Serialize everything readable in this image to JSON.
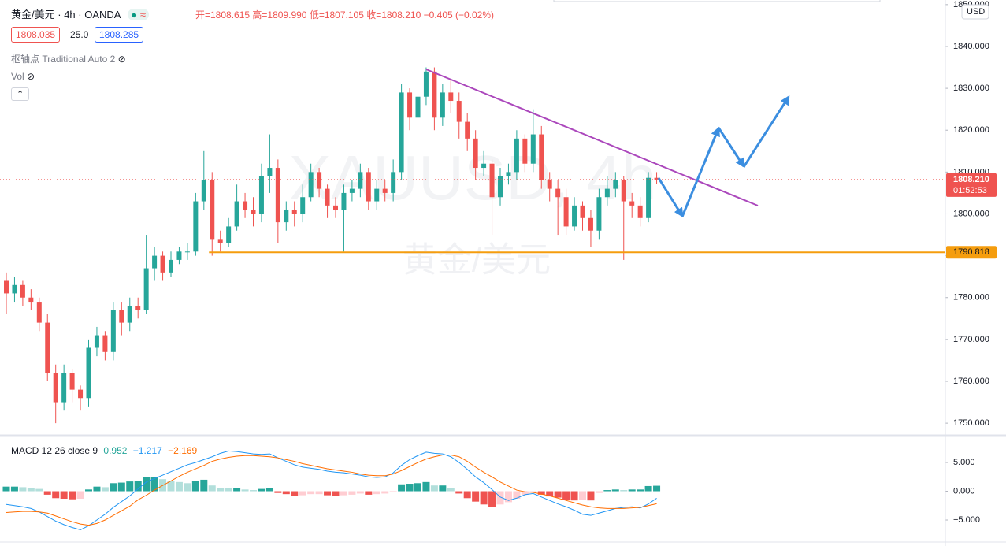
{
  "header": {
    "symbol": "黄金/美元",
    "interval": "4h",
    "source": "OANDA",
    "open": "开=1808.615",
    "high": "高=1809.990",
    "low": "低=1807.105",
    "close": "收=1808.210",
    "change": "−0.405 (−0.02%)",
    "sell": "1808.035",
    "spread": "25.0",
    "buy": "1808.285",
    "pivots": "枢轴点 Traditional Auto 2",
    "vol": "Vol",
    "currency": "USD"
  },
  "chart_data": [
    {
      "type": "candlestick",
      "watermark": [
        "XAUUSD, 4h",
        "黄金/美元"
      ],
      "up_color": "#26a69a",
      "down_color": "#ef5350",
      "open": [
        1784,
        1781,
        1783,
        1780,
        1779,
        1774,
        1762,
        1755,
        1762,
        1758,
        1756,
        1768,
        1771,
        1767,
        1777,
        1774,
        1778,
        1777,
        1787,
        1790,
        1786,
        1789,
        1791,
        1791,
        1803,
        1808,
        1794,
        1793,
        1797,
        1803,
        1801,
        1800,
        1809,
        1811,
        1798,
        1801,
        1800,
        1804,
        1810,
        1806,
        1802,
        1801,
        1805,
        1806,
        1810,
        1803,
        1806,
        1805,
        1810,
        1829,
        1823,
        1828,
        1834,
        1823,
        1829,
        1827,
        1822,
        1818,
        1811,
        1812,
        1804,
        1809,
        1810,
        1818,
        1812,
        1819,
        1808,
        1806,
        1804,
        1797,
        1802,
        1799,
        1796,
        1804,
        1806,
        1808,
        1803,
        1802,
        1799,
        1808.615
      ],
      "high": [
        1786,
        1785,
        1784,
        1782,
        1780,
        1776,
        1764,
        1764,
        1763,
        1759,
        1770,
        1773,
        1772,
        1779,
        1779,
        1780,
        1780,
        1795,
        1792,
        1791,
        1791,
        1792,
        1793,
        1805,
        1815,
        1810,
        1796,
        1799,
        1807,
        1805,
        1804,
        1812,
        1819,
        1813,
        1803,
        1803,
        1807,
        1812,
        1811,
        1807,
        1804,
        1807,
        1808,
        1812,
        1811,
        1808,
        1808,
        1813,
        1831,
        1830,
        1830,
        1835,
        1835,
        1831,
        1832,
        1829,
        1824,
        1820,
        1815,
        1813,
        1811,
        1812,
        1820,
        1819,
        1825,
        1821,
        1810,
        1808,
        1806,
        1804,
        1803,
        1801,
        1806,
        1809,
        1810,
        1809,
        1805,
        1804,
        1810,
        1809.99
      ],
      "low": [
        1776,
        1779,
        1778,
        1777,
        1772,
        1760,
        1750,
        1753,
        1755,
        1753,
        1754,
        1766,
        1765,
        1765,
        1771,
        1772,
        1775,
        1776,
        1784,
        1784,
        1785,
        1788,
        1789,
        1790,
        1801,
        1790,
        1791,
        1792,
        1796,
        1799,
        1797,
        1798,
        1805,
        1793,
        1796,
        1797,
        1798,
        1803,
        1804,
        1799,
        1799,
        1791,
        1803,
        1804,
        1801,
        1801,
        1803,
        1803,
        1808,
        1820,
        1821,
        1826,
        1820,
        1821,
        1824,
        1818,
        1815,
        1808,
        1809,
        1795,
        1802,
        1807,
        1808,
        1810,
        1810,
        1806,
        1803,
        1795,
        1795,
        1796,
        1796,
        1792,
        1794,
        1802,
        1804,
        1789,
        1799,
        1797,
        1798,
        1807.105
      ],
      "close": [
        1781,
        1783,
        1780,
        1779,
        1774,
        1762,
        1755,
        1762,
        1758,
        1756,
        1768,
        1771,
        1767,
        1777,
        1774,
        1778,
        1777,
        1787,
        1790,
        1786,
        1789,
        1791,
        1791,
        1803,
        1808,
        1794,
        1793,
        1797,
        1803,
        1801,
        1800,
        1809,
        1811,
        1798,
        1801,
        1800,
        1804,
        1810,
        1806,
        1802,
        1801,
        1805,
        1806,
        1810,
        1803,
        1806,
        1805,
        1810,
        1829,
        1823,
        1828,
        1834,
        1823,
        1829,
        1827,
        1822,
        1818,
        1811,
        1812,
        1804,
        1809,
        1810,
        1818,
        1812,
        1819,
        1808,
        1806,
        1804,
        1797,
        1802,
        1799,
        1796,
        1804,
        1806,
        1808,
        1803,
        1802,
        1799,
        1808.615,
        1808.21
      ],
      "ylim": [
        1747.2,
        1851.1
      ],
      "yticks": [
        {
          "value": 1750,
          "label": "1750.000"
        },
        {
          "value": 1760,
          "label": "1760.000"
        },
        {
          "value": 1770,
          "label": "1770.000"
        },
        {
          "value": 1780,
          "label": "1780.000"
        },
        {
          "value": 1790,
          "label": "1790.000"
        },
        {
          "value": 1800,
          "label": "1800.000"
        },
        {
          "value": 1810,
          "label": "1810.000"
        },
        {
          "value": 1820,
          "label": "1820.000"
        },
        {
          "value": 1830,
          "label": "1830.000"
        },
        {
          "value": 1840,
          "label": "1840.000"
        },
        {
          "value": 1850,
          "label": "1850.000"
        }
      ],
      "grid": false,
      "last_price": {
        "value": 1808.21,
        "label": "1808.210"
      },
      "countdown": "01:52:53",
      "level": 1790.818,
      "level_color": "#f59d0e",
      "last_color": "#ef5350"
    },
    {
      "type": "macd",
      "title": "MACD 12 26 close 9",
      "last_labels": [
        "0.952",
        "−1.217",
        "−2.169"
      ],
      "histogram": {
        "colors": [
          "#26a69a",
          "#b2dfdb",
          "#ffcdd2",
          "#ef5350"
        ],
        "values": [
          0.8,
          0.8,
          0.7,
          0.6,
          0.4,
          -0.6,
          -1.2,
          -1.3,
          -1.4,
          -1.3,
          0.3,
          0.8,
          0.7,
          1.4,
          1.5,
          1.7,
          1.8,
          2.4,
          2.5,
          2.1,
          1.8,
          1.6,
          1.4,
          1.8,
          2.0,
          1.0,
          0.6,
          0.5,
          0.5,
          0.3,
          0.2,
          0.4,
          0.5,
          -0.3,
          -0.5,
          -0.8,
          -0.7,
          -0.5,
          -0.5,
          -0.7,
          -0.8,
          -0.7,
          -0.6,
          -0.4,
          -0.6,
          -0.5,
          -0.4,
          -0.2,
          1.2,
          1.3,
          1.4,
          1.6,
          1.0,
          1.0,
          0.6,
          -0.4,
          -1.2,
          -1.8,
          -2.3,
          -2.8,
          -2.3,
          -1.9,
          -1.3,
          -0.6,
          -0.2,
          -0.6,
          -0.9,
          -1.1,
          -1.5,
          -1.6,
          -1.5,
          -1.6,
          -0.3,
          0.2,
          0.3,
          0.2,
          0.3,
          0.3,
          0.9,
          0.952
        ]
      },
      "series": [
        {
          "color": "#2196f3",
          "values": [
            -2.3,
            -2.5,
            -2.7,
            -3.0,
            -3.6,
            -4.4,
            -5.2,
            -5.8,
            -6.3,
            -6.7,
            -6.0,
            -5.0,
            -4.0,
            -2.8,
            -1.8,
            -0.8,
            0.4,
            1.6,
            2.2,
            2.8,
            3.4,
            4.0,
            4.6,
            5.0,
            5.5,
            6.0,
            6.6,
            7.0,
            6.9,
            6.7,
            6.5,
            6.4,
            6.5,
            5.8,
            5.2,
            4.6,
            4.2,
            4.0,
            3.8,
            3.5,
            3.3,
            3.2,
            3.0,
            2.8,
            2.5,
            2.4,
            2.5,
            3.2,
            4.5,
            5.5,
            6.2,
            6.8,
            6.6,
            6.5,
            6.0,
            5.0,
            3.8,
            2.5,
            1.5,
            0.3,
            -1.0,
            -1.6,
            -1.2,
            -0.6,
            -0.4,
            -1.0,
            -1.6,
            -2.2,
            -2.7,
            -3.3,
            -4.0,
            -4.2,
            -3.8,
            -3.4,
            -3.0,
            -2.8,
            -2.7,
            -2.9,
            -2.2,
            -1.217
          ]
        },
        {
          "color": "#ff6d00",
          "values": [
            -3.7,
            -3.6,
            -3.5,
            -3.5,
            -3.6,
            -3.8,
            -4.3,
            -4.8,
            -5.3,
            -5.7,
            -5.9,
            -5.6,
            -5.0,
            -4.2,
            -3.4,
            -2.6,
            -1.5,
            -0.7,
            0.2,
            1.0,
            1.8,
            2.6,
            3.3,
            3.9,
            4.5,
            5.2,
            5.6,
            5.9,
            6.1,
            6.2,
            6.2,
            6.1,
            6.0,
            5.8,
            5.5,
            5.2,
            4.8,
            4.5,
            4.2,
            3.9,
            3.7,
            3.5,
            3.3,
            3.0,
            2.8,
            2.7,
            2.7,
            3.0,
            3.6,
            4.3,
            5.0,
            5.6,
            6.0,
            6.3,
            6.3,
            6.0,
            5.2,
            4.2,
            3.3,
            2.5,
            1.6,
            0.9,
            0.2,
            -0.1,
            -0.2,
            -0.5,
            -0.8,
            -1.2,
            -1.6,
            -2.0,
            -2.4,
            -2.7,
            -2.9,
            -3.0,
            -3.0,
            -3.0,
            -2.9,
            -2.8,
            -2.5,
            -2.169
          ]
        }
      ],
      "ylim": [
        -8.56,
        9.25
      ],
      "yticks": [
        {
          "value": 5,
          "label": "5.000"
        },
        {
          "value": 0,
          "label": "0.000"
        },
        {
          "value": -5,
          "label": "−5.000"
        }
      ]
    }
  ]
}
